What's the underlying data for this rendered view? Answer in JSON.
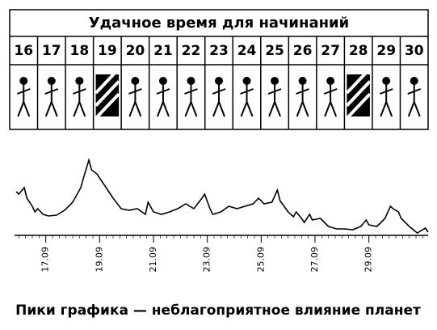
{
  "title": "Удачное время для начинаний",
  "days": [
    16,
    17,
    18,
    19,
    20,
    21,
    22,
    23,
    24,
    25,
    26,
    27,
    28,
    29,
    30
  ],
  "caption": "Пики графика — неблагоприятное влияние планет",
  "chart_data": {
    "type": "line",
    "color": "#000000",
    "x": [
      15.9,
      16.0,
      16.2,
      16.3,
      16.5,
      16.6,
      16.7,
      16.9,
      17.1,
      17.4,
      17.7,
      18.0,
      18.3,
      18.4,
      18.6,
      18.7,
      18.9,
      19.2,
      19.5,
      19.8,
      20.1,
      20.4,
      20.7,
      20.8,
      21.0,
      21.3,
      21.6,
      21.9,
      22.2,
      22.5,
      22.8,
      22.9,
      23.1,
      23.2,
      23.5,
      23.8,
      24.1,
      24.4,
      24.7,
      24.9,
      25.0,
      25.1,
      25.4,
      25.6,
      25.7,
      26.0,
      26.2,
      26.3,
      26.5,
      26.6,
      26.8,
      26.9,
      27.2,
      27.5,
      27.8,
      28.1,
      28.4,
      28.7,
      28.9,
      29.0,
      29.3,
      29.6,
      29.8,
      29.9,
      30.1,
      30.2,
      30.5,
      30.8,
      31.1,
      31.2
    ],
    "values": [
      53,
      50,
      58,
      45,
      35,
      28,
      32,
      25,
      23,
      24,
      30,
      40,
      58,
      70,
      92,
      80,
      75,
      60,
      45,
      32,
      30,
      32,
      25,
      40,
      28,
      25,
      28,
      32,
      38,
      32,
      45,
      50,
      32,
      25,
      28,
      35,
      32,
      35,
      38,
      45,
      42,
      38,
      40,
      55,
      42,
      28,
      22,
      28,
      20,
      15,
      25,
      18,
      20,
      10,
      7,
      7,
      6,
      10,
      18,
      12,
      10,
      20,
      35,
      32,
      28,
      20,
      10,
      2,
      8,
      3
    ],
    "xlim": [
      15.9,
      31.2
    ],
    "ylim": [
      0,
      100
    ],
    "xticks": [
      {
        "value": 17,
        "label": "17.09"
      },
      {
        "value": 19,
        "label": "19.09"
      },
      {
        "value": 21,
        "label": "21.09"
      },
      {
        "value": 23,
        "label": "23.09"
      },
      {
        "value": 25,
        "label": "25.09"
      },
      {
        "value": 27,
        "label": "27.09"
      },
      {
        "value": 29,
        "label": "29.09"
      }
    ]
  }
}
